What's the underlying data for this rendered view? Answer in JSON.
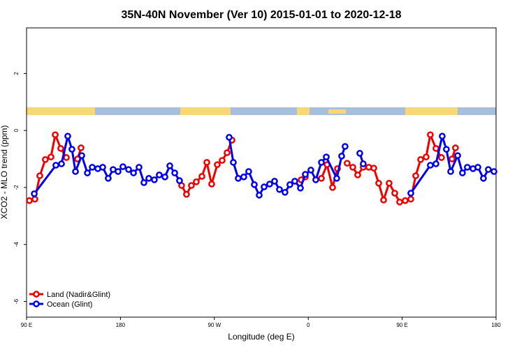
{
  "chart_data": {
    "type": "line",
    "title": "35N-40N November (Ver 10)   2015-01-01 to 2020-12-18",
    "xlabel": "Longitude (deg E)",
    "ylabel": "XCO2 - MLO trend (ppm)",
    "xlim": [
      90,
      540
    ],
    "xticks": [
      {
        "value": 90,
        "label": "90 E"
      },
      180,
      {
        "value": 270,
        "label": "90 W"
      },
      {
        "value": 360,
        "label": "0"
      },
      {
        "value": 450,
        "label": "90 E"
      },
      {
        "value": 540,
        "label": "180"
      }
    ],
    "ylim": [
      -6.55,
      3.6
    ],
    "yticks": [
      -6,
      -4,
      -2,
      0,
      2
    ],
    "legend": "bottom-left",
    "series": [
      {
        "name": "Land (Nadir&Glint)",
        "color": "#ee0000",
        "x": [
          92.7,
          98,
          102.7,
          108,
          113.4,
          117.5,
          122.8,
          128.2,
          null,
          138.9,
          142.2,
          null,
          238.6,
          243.3,
          248.0,
          252.7,
          258.1,
          262.8,
          267.4,
          272.8,
          277.5,
          282.2,
          286.9,
          null,
          353.2,
          357.2,
          null,
          372.6,
          378,
          383.3,
          388,
          null,
          397.3,
          402.7,
          407.4,
          412.7,
          418,
          422.8,
          427.5,
          432.2,
          437.5,
          442.9,
          447.6,
          452.9,
          458.3,
          463,
          467.7,
          473,
          477,
          482.4,
          487.7,
          null,
          497.8,
          501.1
        ],
        "values": [
          -2.46,
          -2.41,
          -1.59,
          -1.02,
          -0.93,
          -0.15,
          -0.63,
          -0.95,
          null,
          -1.0,
          -0.61,
          null,
          -1.93,
          -2.24,
          -1.93,
          -1.8,
          -1.61,
          -1.12,
          -1.88,
          -1.2,
          -1.05,
          -0.78,
          -0.34,
          null,
          -1.73,
          -1.63,
          null,
          -1.68,
          -1.2,
          -2.0,
          -1.34,
          null,
          -1.15,
          -1.29,
          -1.56,
          -1.29,
          -1.29,
          -1.32,
          -1.85,
          -2.44,
          -1.85,
          -2.2,
          -2.51,
          -2.46,
          -2.41,
          -1.59,
          -1.02,
          -0.93,
          -0.15,
          -0.63,
          -0.95,
          null,
          -1.0,
          -0.61
        ]
      },
      {
        "name": "Ocean (Glint)",
        "color": "#0000ee",
        "x": [
          97.4,
          118.1,
          123.5,
          129.5,
          133.5,
          136.9,
          142.9,
          148.3,
          153,
          158.3,
          163,
          168.3,
          173,
          177.7,
          182.4,
          187.8,
          192.5,
          197.8,
          202.5,
          207.2,
          212.5,
          217.2,
          222.6,
          227.3,
          232,
          236.6,
          null,
          284.2,
          288.2,
          292.9,
          298.2,
          302.9,
          308.3,
          313,
          317.7,
          323,
          327.7,
          332.4,
          337.7,
          342.4,
          347.1,
          352.5,
          357.2,
          362.5,
          367.2,
          372.6,
          377.3,
          387.3,
          392,
          395.3,
          null,
          409.4,
          412.7,
          null,
          458.3,
          477,
          482.4,
          488.4,
          492.4,
          496.5,
          503.2,
          507.8,
          512.5,
          517.9,
          522.6,
          527.9,
          532.6,
          538
        ],
        "values": [
          -2.22,
          -1.22,
          -1.17,
          -0.2,
          -0.66,
          -1.44,
          -0.88,
          -1.49,
          -1.29,
          -1.34,
          -1.29,
          -1.68,
          -1.37,
          -1.44,
          -1.27,
          -1.37,
          -1.49,
          -1.29,
          -1.83,
          -1.68,
          -1.73,
          -1.56,
          -1.63,
          -1.24,
          -1.49,
          -1.76,
          null,
          -0.24,
          -1.12,
          -1.68,
          -1.63,
          -1.44,
          -1.9,
          -2.27,
          -1.98,
          -1.88,
          -1.78,
          -2.07,
          -2.17,
          -1.9,
          -1.78,
          -2.02,
          -1.54,
          -1.39,
          -1.73,
          -1.12,
          -0.93,
          -1.68,
          -0.9,
          -0.56,
          null,
          -0.8,
          -1.17,
          null,
          -2.2,
          -1.22,
          -1.17,
          -0.2,
          -0.66,
          -1.44,
          -0.88,
          -1.49,
          -1.29,
          -1.34,
          -1.29,
          -1.68,
          -1.37,
          -1.44
        ]
      }
    ]
  }
}
